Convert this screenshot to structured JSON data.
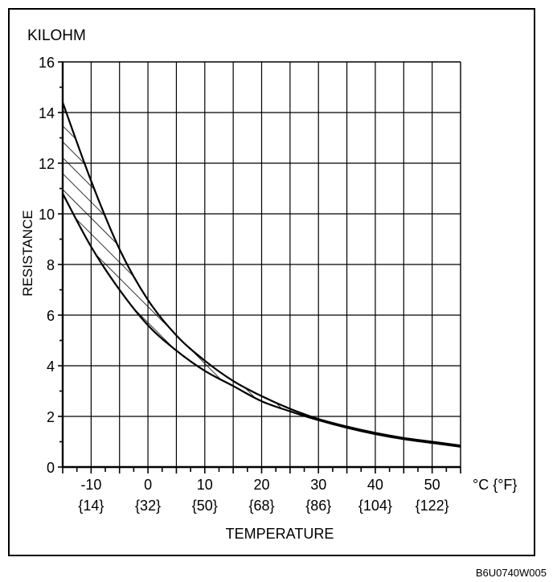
{
  "chart_data": {
    "type": "area",
    "unit_label": "KILOHM",
    "ylabel": "RESISTANCE",
    "xlabel": "TEMPERATURE",
    "x_unit_label": "°C {°F}",
    "ylim": [
      0,
      16
    ],
    "xlim": [
      -15,
      55
    ],
    "y_ticks": [
      "0",
      "2",
      "4",
      "6",
      "8",
      "10",
      "12",
      "14",
      "16"
    ],
    "x_ticks": [
      {
        "c": "-10",
        "f": "{14}"
      },
      {
        "c": "0",
        "f": "{32}"
      },
      {
        "c": "10",
        "f": "{50}"
      },
      {
        "c": "20",
        "f": "{68}"
      },
      {
        "c": "30",
        "f": "{86}"
      },
      {
        "c": "40",
        "f": "{104}"
      },
      {
        "c": "50",
        "f": "{122}"
      }
    ],
    "grid": true,
    "series": [
      {
        "role": "upper bound",
        "x": [
          -15,
          -10,
          -5,
          0,
          5,
          10,
          15,
          20,
          25,
          30,
          35,
          40,
          45,
          50,
          55
        ],
        "y": [
          14.4,
          11.3,
          8.6,
          6.6,
          5.2,
          4.2,
          3.4,
          2.8,
          2.3,
          1.9,
          1.6,
          1.35,
          1.15,
          1.0,
          0.85
        ]
      },
      {
        "role": "lower bound",
        "x": [
          -15,
          -10,
          -5,
          0,
          5,
          10,
          15,
          20,
          25,
          30,
          35,
          40,
          45,
          50,
          55
        ],
        "y": [
          10.8,
          8.7,
          7.0,
          5.6,
          4.6,
          3.8,
          3.2,
          2.6,
          2.2,
          1.85,
          1.55,
          1.3,
          1.1,
          0.95,
          0.8
        ]
      }
    ],
    "fill_between": "hatched"
  },
  "reference_code": "B6U0740W005"
}
